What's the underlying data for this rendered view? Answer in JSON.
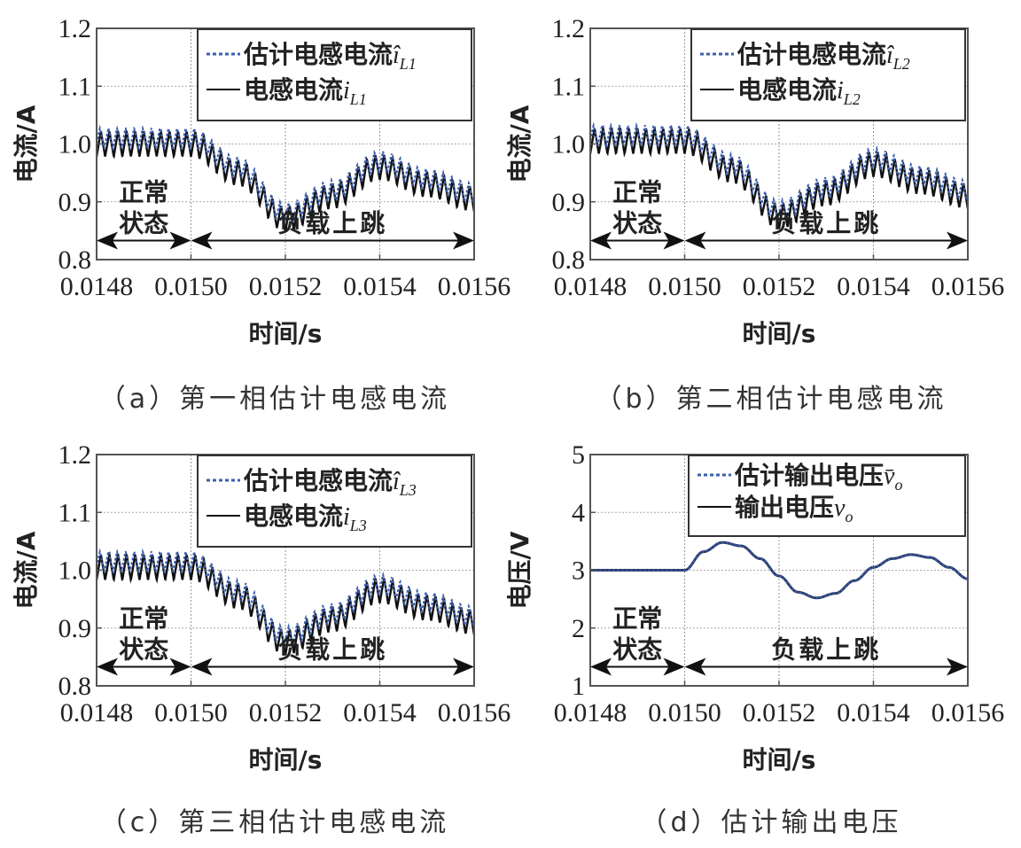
{
  "chart_data": [
    {
      "id": "a",
      "type": "line",
      "caption": "（a）第一相估计电感电流",
      "xlabel": "时间/s",
      "ylabel": "电流/A",
      "xlim": [
        0.0148,
        0.0156
      ],
      "ylim": [
        0.8,
        1.2
      ],
      "xticks": [
        "0.0148",
        "0.0150",
        "0.0152",
        "0.0154",
        "0.0156"
      ],
      "yticks": [
        "0.8",
        "0.9",
        "1.0",
        "1.1",
        "1.2"
      ],
      "grid": true,
      "legend_position": "upper right",
      "series": [
        {
          "name": "估计电感电流î_L1",
          "label_main": "估计电感电流",
          "label_var": "î",
          "label_sub": "L1",
          "style": "dotted",
          "color": "#3a5fb0"
        },
        {
          "name": "电感电流i_L1",
          "label_main": "电感电流",
          "label_var": "i",
          "label_sub": "L1",
          "style": "solid",
          "color": "#111111"
        }
      ],
      "envelope": {
        "x": [
          0.0148,
          0.015,
          0.0151,
          0.0152,
          0.0153,
          0.0154,
          0.0155,
          0.0156
        ],
        "mean": [
          1.0,
          1.0,
          0.95,
          0.87,
          0.91,
          0.96,
          0.93,
          0.905
        ],
        "ripple_amplitude": 0.022,
        "ripple_cycles_per_0.0002s": 11
      },
      "annotations": [
        {
          "text_line1": "正常",
          "text_line2": "状态",
          "x_from": 0.0148,
          "x_to": 0.015,
          "arrow_y": 0.833
        },
        {
          "text": "负载上跳",
          "x_from": 0.015,
          "x_to": 0.0156,
          "arrow_y": 0.833
        }
      ]
    },
    {
      "id": "b",
      "type": "line",
      "caption": "（b）第二相估计电感电流",
      "xlabel": "时间/s",
      "ylabel": "电流/A",
      "xlim": [
        0.0148,
        0.0156
      ],
      "ylim": [
        0.8,
        1.2
      ],
      "xticks": [
        "0.0148",
        "0.0150",
        "0.0152",
        "0.0154",
        "0.0156"
      ],
      "yticks": [
        "0.8",
        "0.9",
        "1.0",
        "1.1",
        "1.2"
      ],
      "grid": true,
      "legend_position": "upper right",
      "series": [
        {
          "name": "估计电感电流î_L2",
          "label_main": "估计电感电流",
          "label_var": "î",
          "label_sub": "L2",
          "style": "dotted",
          "color": "#3a5fb0"
        },
        {
          "name": "电感电流i_L2",
          "label_main": "电感电流",
          "label_var": "i",
          "label_sub": "L2",
          "style": "solid",
          "color": "#111111"
        }
      ],
      "envelope": {
        "x": [
          0.0148,
          0.015,
          0.0151,
          0.0152,
          0.0153,
          0.0154,
          0.0155,
          0.0156
        ],
        "mean": [
          1.005,
          1.005,
          0.955,
          0.875,
          0.915,
          0.965,
          0.935,
          0.91
        ],
        "ripple_amplitude": 0.022,
        "ripple_cycles_per_0.0002s": 11
      },
      "annotations": [
        {
          "text_line1": "正常",
          "text_line2": "状态",
          "x_from": 0.0148,
          "x_to": 0.015,
          "arrow_y": 0.833
        },
        {
          "text": "负载上跳",
          "x_from": 0.015,
          "x_to": 0.0156,
          "arrow_y": 0.833
        }
      ]
    },
    {
      "id": "c",
      "type": "line",
      "caption": "（c）第三相估计电感电流",
      "xlabel": "时间/s",
      "ylabel": "电流/A",
      "xlim": [
        0.0148,
        0.0156
      ],
      "ylim": [
        0.8,
        1.2
      ],
      "xticks": [
        "0.0148",
        "0.0150",
        "0.0152",
        "0.0154",
        "0.0156"
      ],
      "yticks": [
        "0.8",
        "0.9",
        "1.0",
        "1.1",
        "1.2"
      ],
      "grid": true,
      "legend_position": "upper right",
      "series": [
        {
          "name": "估计电感电流î_L3",
          "label_main": "估计电感电流",
          "label_var": "î",
          "label_sub": "L3",
          "style": "dotted",
          "color": "#3a5fb0"
        },
        {
          "name": "电感电流i_L3",
          "label_main": "电感电流",
          "label_var": "i",
          "label_sub": "L3",
          "style": "solid",
          "color": "#111111"
        }
      ],
      "envelope": {
        "x": [
          0.0148,
          0.015,
          0.0151,
          0.0152,
          0.0153,
          0.0154,
          0.0155,
          0.0156
        ],
        "mean": [
          1.005,
          1.005,
          0.955,
          0.875,
          0.915,
          0.965,
          0.935,
          0.91
        ],
        "ripple_amplitude": 0.022,
        "ripple_cycles_per_0.0002s": 11
      },
      "annotations": [
        {
          "text_line1": "正常",
          "text_line2": "状态",
          "x_from": 0.0148,
          "x_to": 0.015,
          "arrow_y": 0.833
        },
        {
          "text": "负载上跳",
          "x_from": 0.015,
          "x_to": 0.0156,
          "arrow_y": 0.833
        }
      ]
    },
    {
      "id": "d",
      "type": "line",
      "caption": "（d）估计输出电压",
      "xlabel": "时间/s",
      "ylabel": "电压/V",
      "xlim": [
        0.0148,
        0.0156
      ],
      "ylim": [
        1,
        5
      ],
      "xticks": [
        "0.0148",
        "0.0150",
        "0.0152",
        "0.0154",
        "0.0156"
      ],
      "yticks": [
        "1",
        "2",
        "3",
        "4",
        "5"
      ],
      "grid": true,
      "legend_position": "upper right",
      "series": [
        {
          "name": "估计输出电压v̄_o",
          "label_main": "估计输出电压",
          "label_var": "v̄",
          "label_sub": "o",
          "style": "dotted",
          "color": "#3a5fb0"
        },
        {
          "name": "输出电压v_o",
          "label_main": "输出电压",
          "label_var": "v",
          "label_sub": "o",
          "style": "solid",
          "color": "#111111"
        }
      ],
      "x": [
        0.0148,
        0.015,
        0.01504,
        0.01508,
        0.01512,
        0.01516,
        0.0152,
        0.01524,
        0.01528,
        0.01532,
        0.01536,
        0.0154,
        0.01544,
        0.01548,
        0.01552,
        0.01556,
        0.0156
      ],
      "values": [
        3.0,
        3.0,
        3.32,
        3.48,
        3.42,
        3.2,
        2.9,
        2.62,
        2.52,
        2.6,
        2.82,
        3.05,
        3.2,
        3.27,
        3.22,
        3.05,
        2.85
      ],
      "annotations": [
        {
          "text_line1": "正常",
          "text_line2": "状态",
          "x_from": 0.0148,
          "x_to": 0.015,
          "arrow_y": 1.33
        },
        {
          "text": "负载上跳",
          "x_from": 0.015,
          "x_to": 0.0156,
          "arrow_y": 1.33
        }
      ]
    }
  ]
}
